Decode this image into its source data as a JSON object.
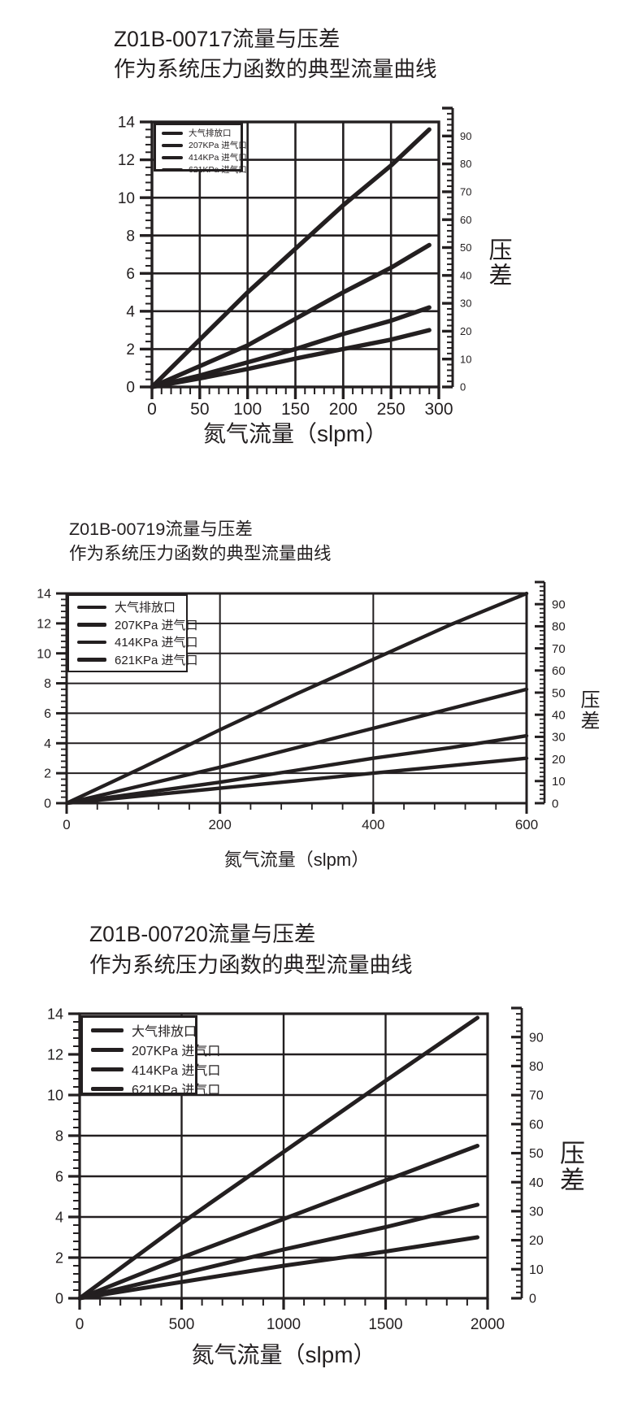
{
  "page": {
    "background": "#ffffff",
    "ink": "#231f20"
  },
  "chart_data": [
    {
      "type": "line",
      "product": "Z01B-00717",
      "title": "Z01B-00717流量与压差",
      "subtitle": "作为系统压力函数的典型流量曲线",
      "xlabel": "氮气流量（slpm）",
      "right_ylabel": "压差",
      "x_range": [
        0,
        300
      ],
      "x_major": 50,
      "x_minor": 10,
      "y_range": [
        0,
        14
      ],
      "y_major": 2,
      "y_minor": 0.4,
      "right_range": [
        0,
        100
      ],
      "right_major": 10,
      "right_minor": 2,
      "right_label_max": 90,
      "grid": true,
      "legend_position": "top-left",
      "series": [
        {
          "name": "大气排放口",
          "points": [
            [
              0,
              0
            ],
            [
              50,
              2.5
            ],
            [
              100,
              5.0
            ],
            [
              150,
              7.3
            ],
            [
              200,
              9.6
            ],
            [
              250,
              11.7
            ],
            [
              290,
              13.6
            ]
          ]
        },
        {
          "name": "207KPa 进气口",
          "points": [
            [
              0,
              0
            ],
            [
              50,
              1.1
            ],
            [
              100,
              2.2
            ],
            [
              150,
              3.6
            ],
            [
              200,
              5.0
            ],
            [
              250,
              6.3
            ],
            [
              290,
              7.5
            ]
          ]
        },
        {
          "name": "414KPa 进气口",
          "points": [
            [
              0,
              0
            ],
            [
              50,
              0.6
            ],
            [
              100,
              1.3
            ],
            [
              150,
              2.0
            ],
            [
              200,
              2.8
            ],
            [
              250,
              3.5
            ],
            [
              290,
              4.2
            ]
          ]
        },
        {
          "name": "621KPa 进气口",
          "points": [
            [
              0,
              0
            ],
            [
              50,
              0.45
            ],
            [
              100,
              0.95
            ],
            [
              150,
              1.5
            ],
            [
              200,
              2.0
            ],
            [
              250,
              2.5
            ],
            [
              290,
              3.0
            ]
          ]
        }
      ]
    },
    {
      "type": "line",
      "product": "Z01B-00719",
      "title": "Z01B-00719流量与压差",
      "subtitle": "作为系统压力函数的典型流量曲线",
      "xlabel": "氮气流量（slpm）",
      "right_ylabel": "压差",
      "x_range": [
        0,
        600
      ],
      "x_major": 200,
      "x_minor": 40,
      "y_range": [
        0,
        14
      ],
      "y_major": 2,
      "y_minor": 0.4,
      "right_range": [
        0,
        100
      ],
      "right_major": 10,
      "right_minor": 2,
      "right_label_max": 90,
      "grid": true,
      "legend_position": "top-left",
      "series": [
        {
          "name": "大气排放口",
          "points": [
            [
              0,
              0
            ],
            [
              100,
              2.4
            ],
            [
              200,
              4.9
            ],
            [
              300,
              7.3
            ],
            [
              400,
              9.6
            ],
            [
              500,
              11.9
            ],
            [
              600,
              14.0
            ]
          ]
        },
        {
          "name": "207KPa 进气口",
          "points": [
            [
              0,
              0
            ],
            [
              100,
              1.2
            ],
            [
              200,
              2.4
            ],
            [
              300,
              3.7
            ],
            [
              400,
              5.0
            ],
            [
              500,
              6.3
            ],
            [
              600,
              7.6
            ]
          ]
        },
        {
          "name": "414KPa 进气口",
          "points": [
            [
              0,
              0
            ],
            [
              100,
              0.7
            ],
            [
              200,
              1.4
            ],
            [
              300,
              2.2
            ],
            [
              400,
              3.0
            ],
            [
              500,
              3.7
            ],
            [
              600,
              4.5
            ]
          ]
        },
        {
          "name": "621KPa 进气口",
          "points": [
            [
              0,
              0
            ],
            [
              100,
              0.5
            ],
            [
              200,
              1.0
            ],
            [
              300,
              1.5
            ],
            [
              400,
              2.0
            ],
            [
              500,
              2.5
            ],
            [
              600,
              3.0
            ]
          ]
        }
      ]
    },
    {
      "type": "line",
      "product": "Z01B-00720",
      "title": "Z01B-00720流量与压差",
      "subtitle": "作为系统压力函数的典型流量曲线",
      "xlabel": "氮气流量（slpm）",
      "right_ylabel": "压差",
      "x_range": [
        0,
        2000
      ],
      "x_major": 500,
      "x_minor": 100,
      "y_range": [
        0,
        14
      ],
      "y_major": 2,
      "y_minor": 0.4,
      "right_range": [
        0,
        100
      ],
      "right_major": 10,
      "right_minor": 2,
      "right_label_max": 90,
      "grid": true,
      "legend_position": "top-left",
      "series": [
        {
          "name": "大气排放口",
          "points": [
            [
              0,
              0
            ],
            [
              500,
              3.7
            ],
            [
              1000,
              7.2
            ],
            [
              1500,
              10.7
            ],
            [
              1950,
              13.8
            ]
          ]
        },
        {
          "name": "207KPa 进气口",
          "points": [
            [
              0,
              0
            ],
            [
              500,
              2.0
            ],
            [
              1000,
              3.9
            ],
            [
              1500,
              5.8
            ],
            [
              1950,
              7.5
            ]
          ]
        },
        {
          "name": "414KPa 进气口",
          "points": [
            [
              0,
              0
            ],
            [
              500,
              1.2
            ],
            [
              1000,
              2.4
            ],
            [
              1500,
              3.5
            ],
            [
              1950,
              4.6
            ]
          ]
        },
        {
          "name": "621KPa 进气口",
          "points": [
            [
              0,
              0
            ],
            [
              500,
              0.8
            ],
            [
              1000,
              1.6
            ],
            [
              1500,
              2.3
            ],
            [
              1950,
              3.0
            ]
          ]
        }
      ]
    }
  ]
}
